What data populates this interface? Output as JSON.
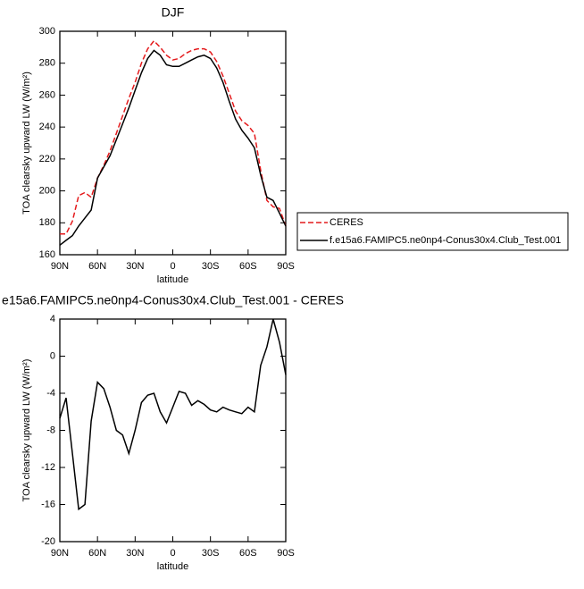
{
  "chart_data": [
    {
      "type": "line",
      "title": "DJF",
      "xlabel": "latitude",
      "ylabel": "TOA clearsky upward LW (W/m²)",
      "x": [
        90,
        85,
        80,
        75,
        70,
        65,
        60,
        55,
        50,
        45,
        40,
        35,
        30,
        25,
        20,
        15,
        10,
        5,
        0,
        -5,
        -10,
        -15,
        -20,
        -25,
        -30,
        -35,
        -40,
        -45,
        -50,
        -55,
        -60,
        -65,
        -70,
        -75,
        -80,
        -85,
        -90
      ],
      "xlim": [
        90,
        -90
      ],
      "xticks": [
        {
          "value": 90,
          "label": "90N"
        },
        {
          "value": 60,
          "label": "60N"
        },
        {
          "value": 30,
          "label": "30N"
        },
        0,
        {
          "value": -30,
          "label": "30S"
        },
        {
          "value": -60,
          "label": "60S"
        },
        {
          "value": -90,
          "label": "90S"
        }
      ],
      "ylim": [
        160,
        300
      ],
      "yticks": [
        160,
        180,
        200,
        220,
        240,
        260,
        280,
        300
      ],
      "series": [
        {
          "name": "CERES",
          "color": "#e41a1c",
          "line_style": "dashed",
          "values": [
            173,
            173,
            181,
            197,
            199,
            196,
            208,
            216,
            225,
            236,
            247,
            258,
            268,
            280,
            289,
            294,
            290,
            285,
            282,
            283,
            286,
            288,
            289,
            289,
            287,
            281,
            272,
            261,
            250,
            244,
            241,
            236,
            213,
            194,
            190,
            189,
            178
          ]
        },
        {
          "name": "f.e15a6.FAMIPC5.ne0np4-Conus30x4.Club_Test.001",
          "color": "#000000",
          "line_style": "solid",
          "values": [
            166,
            169,
            172,
            178,
            183,
            188,
            208,
            215,
            222,
            232,
            242,
            252,
            263,
            274,
            283,
            288,
            285,
            279,
            278,
            278,
            280,
            282,
            284,
            285,
            283,
            277,
            268,
            256,
            245,
            238,
            233,
            227,
            210,
            196,
            194,
            186,
            178
          ]
        }
      ]
    },
    {
      "type": "line",
      "title": "e15a6.FAMIPC5.ne0np4-Conus30x4.Club_Test.001 - CERES",
      "xlabel": "latitude",
      "ylabel": "TOA clearsky upward LW (W/m²)",
      "x": [
        90,
        85,
        80,
        75,
        70,
        65,
        60,
        55,
        50,
        45,
        40,
        35,
        30,
        25,
        20,
        15,
        10,
        5,
        0,
        -5,
        -10,
        -15,
        -20,
        -25,
        -30,
        -35,
        -40,
        -45,
        -50,
        -55,
        -60,
        -65,
        -70,
        -75,
        -80,
        -85,
        -90
      ],
      "xlim": [
        90,
        -90
      ],
      "xticks": [
        {
          "value": 90,
          "label": "90N"
        },
        {
          "value": 60,
          "label": "60N"
        },
        {
          "value": 30,
          "label": "30N"
        },
        0,
        {
          "value": -30,
          "label": "30S"
        },
        {
          "value": -60,
          "label": "60S"
        },
        {
          "value": -90,
          "label": "90S"
        }
      ],
      "ylim": [
        -20,
        4
      ],
      "yticks": [
        -20,
        -16,
        -12,
        -8,
        -4,
        0,
        4
      ],
      "color": "#000000",
      "values": [
        -6.7,
        -4.5,
        -10.5,
        -16.5,
        -16,
        -7,
        -2.8,
        -3.5,
        -5.5,
        -8,
        -8.5,
        -10.5,
        -8,
        -5,
        -4.2,
        -4,
        -6,
        -7.2,
        -5.5,
        -3.8,
        -4,
        -5.3,
        -4.8,
        -5.2,
        -5.8,
        -6,
        -5.5,
        -5.8,
        -6,
        -6.2,
        -5.5,
        -6,
        -1,
        1,
        4,
        1.5,
        -2
      ]
    }
  ]
}
